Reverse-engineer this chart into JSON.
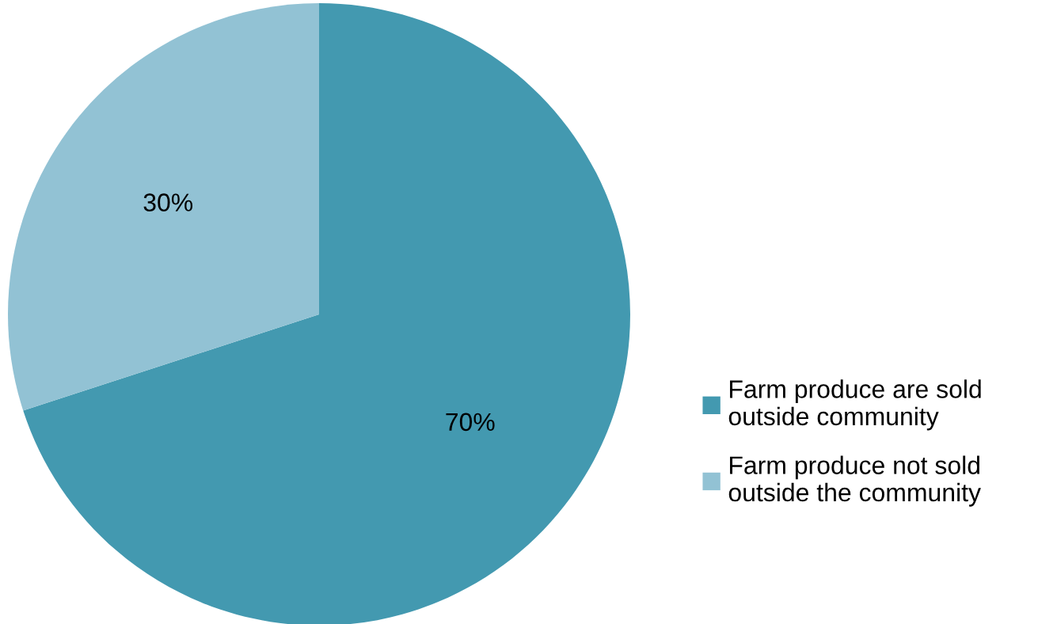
{
  "chart_data": {
    "type": "pie",
    "categories": [
      "Farm produce are sold\noutside community",
      "Farm produce not sold\noutside the community"
    ],
    "values": [
      70,
      30
    ],
    "colors": [
      "#4399b0",
      "#92c2d4"
    ],
    "value_labels": [
      "70%",
      "30%"
    ],
    "legend": "right"
  }
}
